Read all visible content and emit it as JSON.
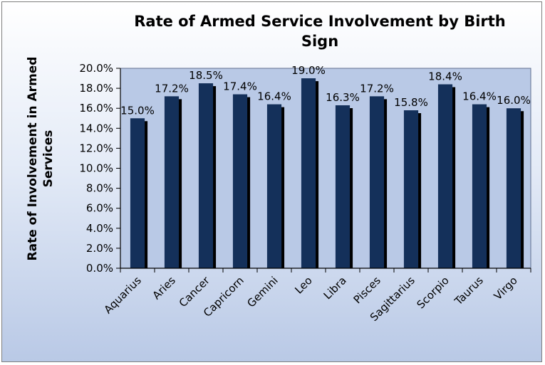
{
  "chart_data": {
    "type": "bar",
    "title": "Rate of Armed Service Involvement by Birth Sign",
    "title_lines": [
      "Rate of Armed Service Involvement by Birth",
      "Sign"
    ],
    "ylabel": "Rate of Involvement in Armed Services",
    "ylabel_lines": [
      "Rate of Involvement in Armed",
      "Services"
    ],
    "xlabel": "",
    "ylim": [
      0,
      20
    ],
    "ytick_step": 2,
    "yticks": [
      "0.0%",
      "2.0%",
      "4.0%",
      "6.0%",
      "8.0%",
      "10.0%",
      "12.0%",
      "14.0%",
      "16.0%",
      "18.0%",
      "20.0%"
    ],
    "categories": [
      "Aquarius",
      "Aries",
      "Cancer",
      "Capricorn",
      "Gemini",
      "Leo",
      "Libra",
      "Pisces",
      "Sagittarius",
      "Scorpio",
      "Taurus",
      "Virgo"
    ],
    "values": [
      15.0,
      17.2,
      18.5,
      17.4,
      16.4,
      19.0,
      16.3,
      17.2,
      15.8,
      18.4,
      16.4,
      16.0
    ],
    "data_labels": [
      "15.0%",
      "17.2%",
      "18.5%",
      "17.4%",
      "16.4%",
      "19.0%",
      "16.3%",
      "17.2%",
      "15.8%",
      "18.4%",
      "16.4%",
      "16.0%"
    ],
    "grid": false,
    "legend": "none",
    "colors": {
      "bar": "#14305a",
      "bar_shadow": "#000000",
      "plot_bg": "#b9c9e6",
      "plot_border": "#5f6f8f"
    }
  }
}
